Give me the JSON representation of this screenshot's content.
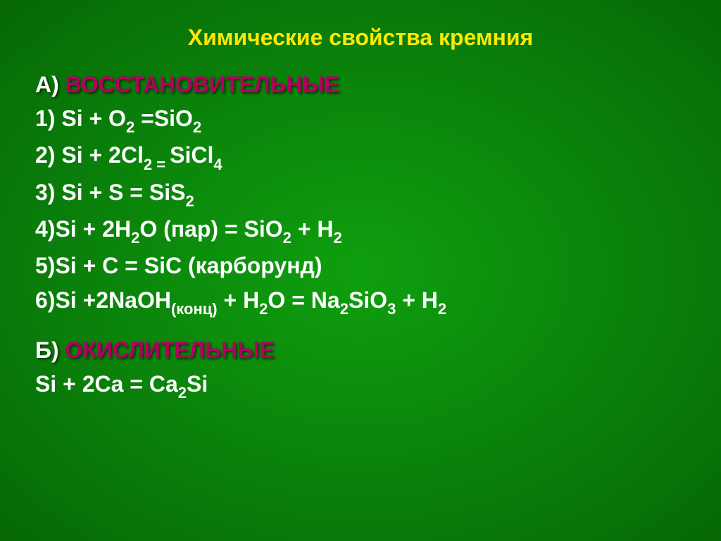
{
  "slide": {
    "background_color": "#0a8a0a",
    "background_gradient_from": "#0f9f0f",
    "background_gradient_to": "#066806",
    "title": "Химические свойства кремния",
    "title_color": "#ffe800",
    "section_a": {
      "prefix": "А) ",
      "label": "ВОССТАНОВИТЕЛЬНЫЕ",
      "label_color": "#b30060"
    },
    "eq1_num": "1) ",
    "eq1_a": "Si + O",
    "eq1_b": " =SiO",
    "eq2_num": "2) ",
    "eq2_a": "Si + 2Cl",
    "eq2_eq": " = ",
    "eq2_b": "SiCl",
    "eq3_num": "3) ",
    "eq3_a": "Si + S = SiS",
    "eq4_num": "4)",
    "eq4_a": "Si + 2H",
    "eq4_b": "O (пар) = SiO",
    "eq4_c": " + H",
    "eq5_num": "5)",
    "eq5_a": "Si + C = SiC (карборунд)",
    "eq6_num": "6)",
    "eq6_a": "Si +2NaOH",
    "eq6_conc": "(конц)",
    "eq6_b": " + H",
    "eq6_c": "O = Na",
    "eq6_d": "SiO",
    "eq6_e": " + H",
    "section_b": {
      "prefix": "Б) ",
      "label": "ОКИСЛИТЕЛЬНЫЕ",
      "label_color": "#b30060"
    },
    "eq7_a": "Si + 2Ca = Ca",
    "eq7_b": "Si",
    "sub2": "2",
    "sub3": "3",
    "sub4": "4"
  }
}
